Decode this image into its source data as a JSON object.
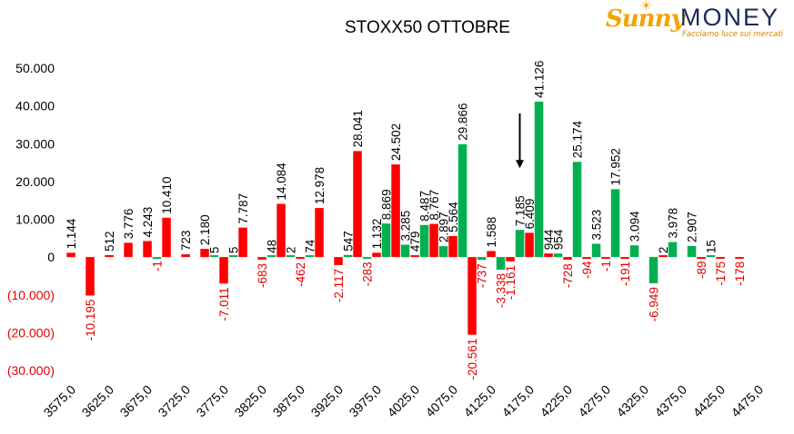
{
  "logo": {
    "brand_left": "Sunny",
    "brand_right": "MONEY",
    "tagline": "Facciamo luce sui mercati",
    "brand_color": "#f4a300",
    "text_color": "#1c2a5a"
  },
  "colors": {
    "negative_series": "#ff0000",
    "positive_series": "#00b050",
    "negative_label": "#e00000",
    "positive_label": "#000000",
    "axis_text": "#000000",
    "axis_negative_text": "#e00000"
  },
  "chart_data": {
    "type": "bar",
    "title": "STOXX50 OTTOBRE",
    "xlabel": "",
    "ylabel": "",
    "ylim": [
      -30000,
      50000
    ],
    "yticks": [
      {
        "value": 50000,
        "label": "50.000"
      },
      {
        "value": 40000,
        "label": "40.000"
      },
      {
        "value": 30000,
        "label": "30.000"
      },
      {
        "value": 20000,
        "label": "20.000"
      },
      {
        "value": 10000,
        "label": "10.000"
      },
      {
        "value": 0,
        "label": "0"
      },
      {
        "value": -10000,
        "label": "(10.000)"
      },
      {
        "value": -20000,
        "label": "(20.000)"
      },
      {
        "value": -30000,
        "label": "(30.000)"
      }
    ],
    "grid": false,
    "legend": "none",
    "x_tick_labels": [
      "3575,0",
      "3625,0",
      "3675,0",
      "3725,0",
      "3775,0",
      "3825,0",
      "3875,0",
      "3925,0",
      "3975,0",
      "4025,0",
      "4075,0",
      "4125,0",
      "4175,0",
      "4225,0",
      "4275,0",
      "4325,0",
      "4375,0",
      "4425,0",
      "4475,0"
    ],
    "x_tick_positions": [
      3575,
      3625,
      3675,
      3725,
      3775,
      3825,
      3875,
      3925,
      3975,
      4025,
      4075,
      4125,
      4175,
      4225,
      4275,
      4325,
      4375,
      4425,
      4475
    ],
    "arrow_marker": {
      "x": 4162.5,
      "from_y": 38000,
      "to_y": 23500
    },
    "series": [
      {
        "color": "#ff0000",
        "points": [
          {
            "x": 3575,
            "y": 1144,
            "label": "1.144"
          },
          {
            "x": 3600,
            "y": -10195,
            "label": "-10.195"
          },
          {
            "x": 3625,
            "y": 512,
            "label": "512"
          },
          {
            "x": 3650,
            "y": 3776,
            "label": "3.776"
          },
          {
            "x": 3675,
            "y": 4243,
            "label": "4.243"
          },
          {
            "x": 3700,
            "y": 10410,
            "label": "10.410"
          },
          {
            "x": 3725,
            "y": 723,
            "label": "723"
          },
          {
            "x": 3750,
            "y": 2180,
            "label": "2.180"
          },
          {
            "x": 3775,
            "y": -7011,
            "label": "-7.011"
          },
          {
            "x": 3800,
            "y": 7787,
            "label": "7.787"
          },
          {
            "x": 3825,
            "y": -683,
            "label": "-683"
          },
          {
            "x": 3850,
            "y": 14084,
            "label": "14.084"
          },
          {
            "x": 3875,
            "y": -462,
            "label": "-462"
          },
          {
            "x": 3900,
            "y": 12978,
            "label": "12.978"
          },
          {
            "x": 3925,
            "y": -2117,
            "label": "-2.117"
          },
          {
            "x": 3950,
            "y": 28041,
            "label": "28.041"
          },
          {
            "x": 3975,
            "y": 1132,
            "label": "1.132"
          },
          {
            "x": 4000,
            "y": 24502,
            "label": "24.502"
          },
          {
            "x": 4025,
            "y": 479,
            "label": "479"
          },
          {
            "x": 4050,
            "y": 8767,
            "label": "8.767"
          },
          {
            "x": 4075,
            "y": 5564,
            "label": "5.564"
          },
          {
            "x": 4100,
            "y": -20561,
            "label": "-20.561"
          },
          {
            "x": 4125,
            "y": 1588,
            "label": "1.588"
          },
          {
            "x": 4150,
            "y": -1161,
            "label": "-1.161"
          },
          {
            "x": 4175,
            "y": 6409,
            "label": "6.409"
          },
          {
            "x": 4200,
            "y": 944,
            "label": "944"
          },
          {
            "x": 4225,
            "y": -728,
            "label": "-728"
          },
          {
            "x": 4250,
            "y": -94,
            "label": "-94"
          },
          {
            "x": 4275,
            "y": -1,
            "label": "-1"
          },
          {
            "x": 4300,
            "y": -191,
            "label": "-191"
          },
          {
            "x": 4325,
            "y": 0,
            "label": ""
          },
          {
            "x": 4350,
            "y": 2,
            "label": "2"
          },
          {
            "x": 4375,
            "y": 0,
            "label": ""
          },
          {
            "x": 4400,
            "y": -89,
            "label": "-89"
          },
          {
            "x": 4425,
            "y": -175,
            "label": "-175"
          },
          {
            "x": 4450,
            "y": -178,
            "label": "-178"
          }
        ]
      },
      {
        "color": "#00b050",
        "points": [
          {
            "x": 3575,
            "y": 0,
            "label": ""
          },
          {
            "x": 3600,
            "y": 0,
            "label": ""
          },
          {
            "x": 3625,
            "y": 0,
            "label": ""
          },
          {
            "x": 3650,
            "y": 0,
            "label": ""
          },
          {
            "x": 3675,
            "y": -1,
            "label": "-1"
          },
          {
            "x": 3700,
            "y": 0,
            "label": ""
          },
          {
            "x": 3725,
            "y": 0,
            "label": ""
          },
          {
            "x": 3750,
            "y": 5,
            "label": "5"
          },
          {
            "x": 3775,
            "y": 5,
            "label": "5"
          },
          {
            "x": 3800,
            "y": 0,
            "label": ""
          },
          {
            "x": 3825,
            "y": 48,
            "label": "48"
          },
          {
            "x": 3850,
            "y": 2,
            "label": "2"
          },
          {
            "x": 3875,
            "y": 74,
            "label": "74"
          },
          {
            "x": 3900,
            "y": 0,
            "label": ""
          },
          {
            "x": 3925,
            "y": 547,
            "label": "547"
          },
          {
            "x": 3950,
            "y": -283,
            "label": "-283"
          },
          {
            "x": 3975,
            "y": 8869,
            "label": "8.869"
          },
          {
            "x": 4000,
            "y": 3285,
            "label": "3.285"
          },
          {
            "x": 4025,
            "y": 8487,
            "label": "8.487"
          },
          {
            "x": 4050,
            "y": 2897,
            "label": "2.897"
          },
          {
            "x": 4075,
            "y": 29866,
            "label": "29.866"
          },
          {
            "x": 4100,
            "y": -737,
            "label": "-737"
          },
          {
            "x": 4125,
            "y": -3338,
            "label": "-3.338"
          },
          {
            "x": 4150,
            "y": 7185,
            "label": "7.185"
          },
          {
            "x": 4175,
            "y": 41126,
            "label": "41.126"
          },
          {
            "x": 4200,
            "y": 954,
            "label": "954"
          },
          {
            "x": 4225,
            "y": 25174,
            "label": "25.174"
          },
          {
            "x": 4250,
            "y": 3523,
            "label": "3.523"
          },
          {
            "x": 4275,
            "y": 17952,
            "label": "17.952"
          },
          {
            "x": 4300,
            "y": 3094,
            "label": "3.094"
          },
          {
            "x": 4325,
            "y": -6949,
            "label": "-6.949"
          },
          {
            "x": 4350,
            "y": 3978,
            "label": "3.978"
          },
          {
            "x": 4375,
            "y": 2907,
            "label": "2.907"
          },
          {
            "x": 4400,
            "y": 15,
            "label": "15"
          },
          {
            "x": 4425,
            "y": 0,
            "label": ""
          },
          {
            "x": 4450,
            "y": 0,
            "label": ""
          }
        ]
      }
    ]
  }
}
